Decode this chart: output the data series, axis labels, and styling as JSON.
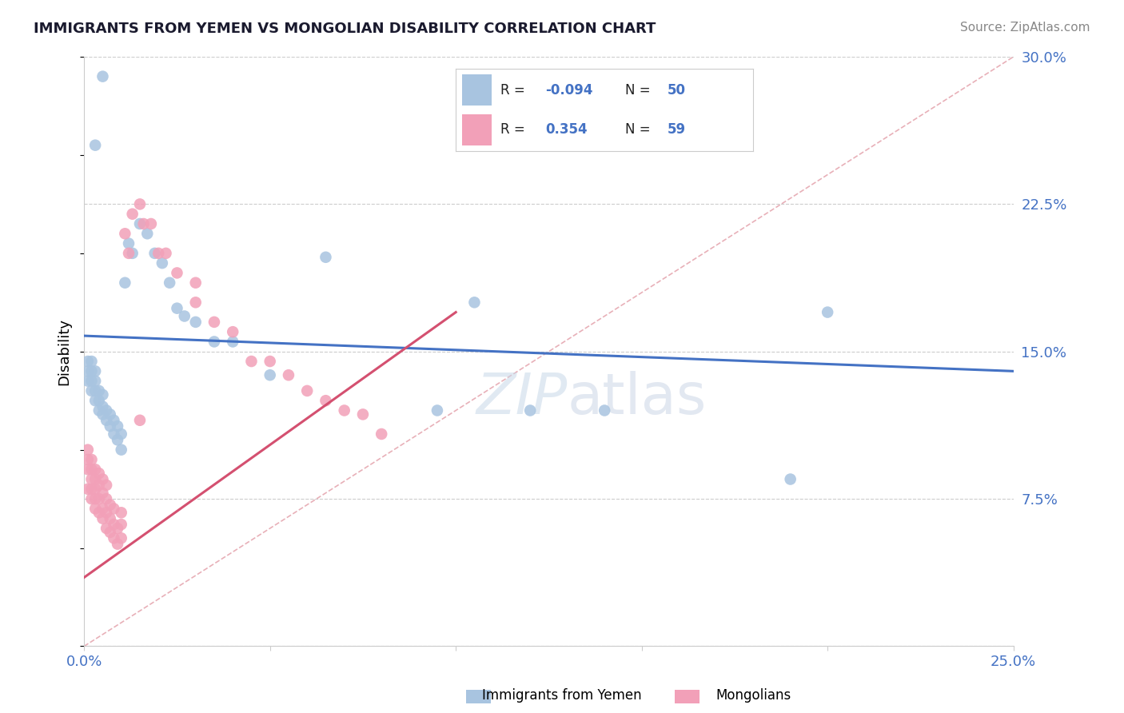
{
  "title": "IMMIGRANTS FROM YEMEN VS MONGOLIAN DISABILITY CORRELATION CHART",
  "source": "Source: ZipAtlas.com",
  "ylabel": "Disability",
  "xlim": [
    0.0,
    0.25
  ],
  "ylim": [
    0.0,
    0.3
  ],
  "xticks": [
    0.0,
    0.05,
    0.1,
    0.15,
    0.2,
    0.25
  ],
  "xtick_labels": [
    "0.0%",
    "",
    "",
    "",
    "",
    "25.0%"
  ],
  "yticks": [
    0.0,
    0.075,
    0.15,
    0.225,
    0.3
  ],
  "ytick_labels": [
    "",
    "7.5%",
    "15.0%",
    "22.5%",
    "30.0%"
  ],
  "legend_labels": [
    "Immigrants from Yemen",
    "Mongolians"
  ],
  "R_yemen": -0.094,
  "N_yemen": 50,
  "R_mongolian": 0.354,
  "N_mongolian": 59,
  "color_yemen": "#a8c4e0",
  "color_mongolian": "#f2a0b8",
  "line_color_yemen": "#4472c4",
  "line_color_mongolian": "#d45070",
  "diagonal_color": "#e8b0b8",
  "background_color": "#ffffff",
  "yemen_line_x0": 0.0,
  "yemen_line_y0": 0.158,
  "yemen_line_x1": 0.25,
  "yemen_line_y1": 0.14,
  "mongolian_line_x0": 0.0,
  "mongolian_line_y0": 0.035,
  "mongolian_line_x1": 0.1,
  "mongolian_line_y1": 0.17,
  "yemen_x": [
    0.001,
    0.001,
    0.001,
    0.002,
    0.002,
    0.002,
    0.002,
    0.003,
    0.003,
    0.003,
    0.003,
    0.004,
    0.004,
    0.004,
    0.005,
    0.005,
    0.005,
    0.006,
    0.006,
    0.007,
    0.007,
    0.008,
    0.008,
    0.009,
    0.009,
    0.01,
    0.01,
    0.011,
    0.012,
    0.013,
    0.015,
    0.017,
    0.019,
    0.021,
    0.023,
    0.025,
    0.027,
    0.03,
    0.035,
    0.04,
    0.05,
    0.065,
    0.095,
    0.105,
    0.12,
    0.14,
    0.19,
    0.2,
    0.005,
    0.003
  ],
  "yemen_y": [
    0.135,
    0.14,
    0.145,
    0.13,
    0.135,
    0.14,
    0.145,
    0.125,
    0.13,
    0.135,
    0.14,
    0.12,
    0.125,
    0.13,
    0.118,
    0.122,
    0.128,
    0.115,
    0.12,
    0.112,
    0.118,
    0.108,
    0.115,
    0.105,
    0.112,
    0.1,
    0.108,
    0.185,
    0.205,
    0.2,
    0.215,
    0.21,
    0.2,
    0.195,
    0.185,
    0.172,
    0.168,
    0.165,
    0.155,
    0.155,
    0.138,
    0.198,
    0.12,
    0.175,
    0.12,
    0.12,
    0.085,
    0.17,
    0.29,
    0.255
  ],
  "mongolian_x": [
    0.001,
    0.001,
    0.001,
    0.001,
    0.002,
    0.002,
    0.002,
    0.002,
    0.002,
    0.003,
    0.003,
    0.003,
    0.003,
    0.003,
    0.004,
    0.004,
    0.004,
    0.004,
    0.005,
    0.005,
    0.005,
    0.005,
    0.006,
    0.006,
    0.006,
    0.006,
    0.007,
    0.007,
    0.007,
    0.008,
    0.008,
    0.008,
    0.009,
    0.009,
    0.01,
    0.01,
    0.01,
    0.011,
    0.012,
    0.013,
    0.015,
    0.016,
    0.018,
    0.02,
    0.022,
    0.025,
    0.03,
    0.03,
    0.035,
    0.04,
    0.045,
    0.05,
    0.055,
    0.06,
    0.065,
    0.07,
    0.075,
    0.08,
    0.015
  ],
  "mongolian_y": [
    0.08,
    0.09,
    0.095,
    0.1,
    0.075,
    0.08,
    0.085,
    0.09,
    0.095,
    0.07,
    0.075,
    0.08,
    0.085,
    0.09,
    0.068,
    0.075,
    0.082,
    0.088,
    0.065,
    0.07,
    0.078,
    0.085,
    0.06,
    0.068,
    0.075,
    0.082,
    0.058,
    0.065,
    0.072,
    0.055,
    0.062,
    0.07,
    0.052,
    0.06,
    0.055,
    0.062,
    0.068,
    0.21,
    0.2,
    0.22,
    0.225,
    0.215,
    0.215,
    0.2,
    0.2,
    0.19,
    0.185,
    0.175,
    0.165,
    0.16,
    0.145,
    0.145,
    0.138,
    0.13,
    0.125,
    0.12,
    0.118,
    0.108,
    0.115
  ]
}
